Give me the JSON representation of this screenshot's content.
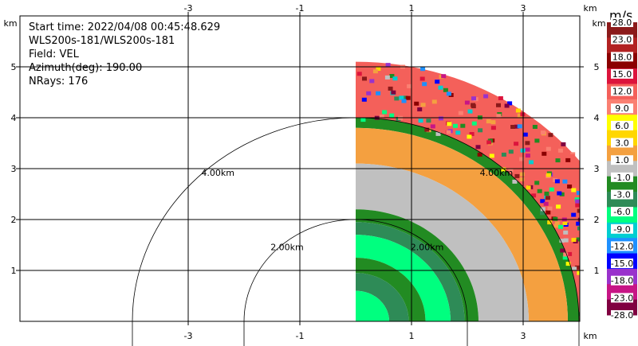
{
  "chart_data": {
    "type": "heatmap",
    "info": {
      "start_time": "Start time: 2022/04/08 00:45:48.629",
      "instrument": "WLS200s-181/WLS200s-181",
      "field": "Field: VEL",
      "azimuth": "Azimuth(deg): 190.00",
      "nrays": "NRays: 176"
    },
    "axis_unit": "km",
    "x_ticks": [
      -3,
      -1,
      1,
      3
    ],
    "y_ticks": [
      1,
      2,
      3,
      4,
      5
    ],
    "xlim": [
      -5.0,
      5.0
    ],
    "ylim": [
      0.0,
      5.0
    ],
    "range_rings": [
      {
        "radius": 2.0,
        "label": "2.00km"
      },
      {
        "radius": 4.0,
        "label": "4.00km"
      }
    ],
    "data_extent": {
      "x_start_km": 0.0,
      "max_range_km": 5.1
    },
    "colorbar": {
      "unit": "m/s",
      "ticks": [
        "28.0",
        "23.0",
        "18.0",
        "15.0",
        "12.0",
        "9.0",
        "6.0",
        "3.0",
        "1.0",
        "-1.0",
        "-3.0",
        "-6.0",
        "-9.0",
        "-12.0",
        "-15.0",
        "-18.0",
        "-23.0",
        "-28.0"
      ],
      "colors": [
        "#8b1a1a",
        "#b22222",
        "#8b0000",
        "#dc143c",
        "#f4605a",
        "#fa8072",
        "#ffff00",
        "#ffd700",
        "#f4a040",
        "#c0c0c0",
        "#228b22",
        "#2e8b57",
        "#00ff7f",
        "#00ced1",
        "#1e90ff",
        "#0000ff",
        "#9932cc",
        "#c71585",
        "#800040"
      ]
    },
    "velocity_bands": [
      {
        "from_km": 0.0,
        "to_km": 0.6,
        "value": -6.0
      },
      {
        "from_km": 0.6,
        "to_km": 0.95,
        "value": -3.0
      },
      {
        "from_km": 0.95,
        "to_km": 1.25,
        "value": -1.0
      },
      {
        "from_km": 1.25,
        "to_km": 1.7,
        "value": -6.0
      },
      {
        "from_km": 1.7,
        "to_km": 1.95,
        "value": -3.0
      },
      {
        "from_km": 1.95,
        "to_km": 2.2,
        "value": -1.0
      },
      {
        "from_km": 2.2,
        "to_km": 3.1,
        "value": 1.0
      },
      {
        "from_km": 3.1,
        "to_km": 3.8,
        "value": 3.0
      },
      {
        "from_km": 3.8,
        "to_km": 4.0,
        "value": -1.0
      },
      {
        "from_km": 4.0,
        "to_km": 5.1,
        "value": 15.0
      }
    ]
  }
}
